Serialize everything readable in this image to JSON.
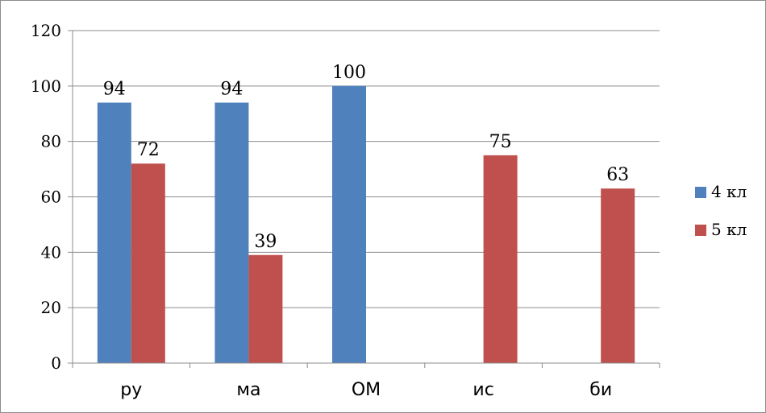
{
  "chart_data": {
    "type": "bar",
    "categories": [
      "ру",
      "ма",
      "ОМ",
      "ис",
      "би"
    ],
    "series": [
      {
        "name": "4 кл",
        "values": [
          94,
          94,
          100,
          null,
          null
        ],
        "color": "#4F81BD"
      },
      {
        "name": "5 кл",
        "values": [
          72,
          39,
          null,
          75,
          63
        ],
        "color": "#C0504D"
      }
    ],
    "ylim": [
      0,
      120
    ],
    "yticks": [
      0,
      20,
      40,
      60,
      80,
      100,
      120
    ],
    "grid": true,
    "legend": "right",
    "title": "",
    "xlabel": "",
    "ylabel": ""
  }
}
